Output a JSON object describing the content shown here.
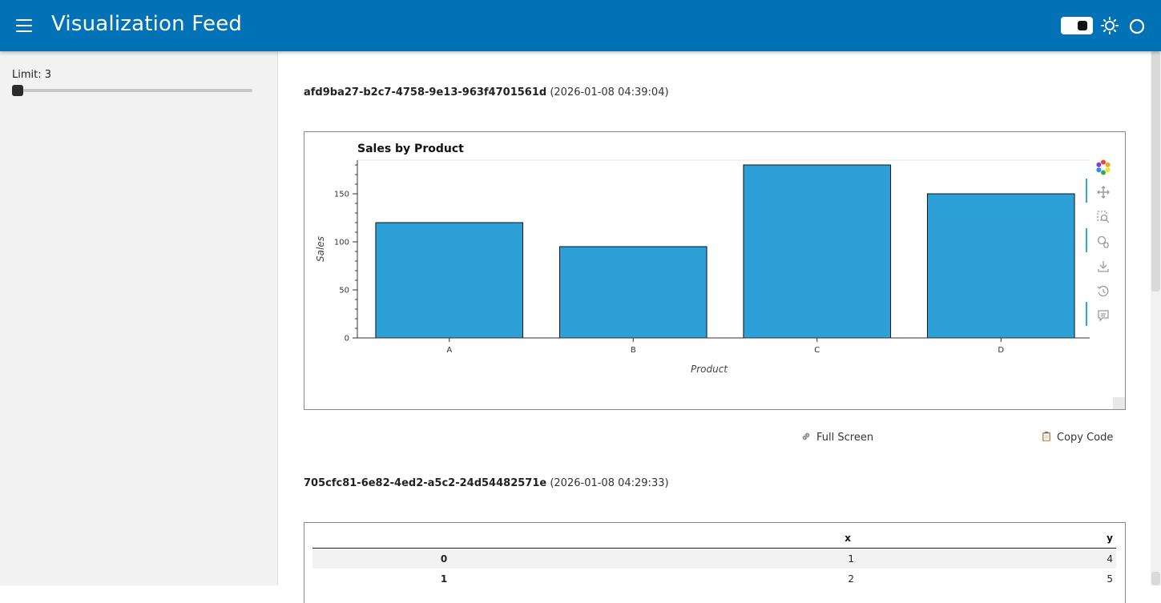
{
  "header": {
    "title": "Visualization Feed"
  },
  "sidebar": {
    "limit_label": "Limit: 3",
    "limit_value": 3
  },
  "entries": [
    {
      "id": "afd9ba27-b2c7-4758-9e13-963f4701561d",
      "timestamp": "(2026-01-08 04:39:04)"
    },
    {
      "id": "705cfc81-6e82-4ed2-a5c2-24d54482571e",
      "timestamp": "(2026-01-08 04:29:33)"
    }
  ],
  "chart_data": {
    "type": "bar",
    "title": "Sales by Product",
    "xlabel": "Product",
    "ylabel": "Sales",
    "categories": [
      "A",
      "B",
      "C",
      "D"
    ],
    "values": [
      120,
      95,
      180,
      150
    ],
    "ylim": [
      0,
      185
    ],
    "yticks": [
      0,
      50,
      100,
      150
    ],
    "bar_color": "#2ea0d8",
    "grid": false
  },
  "actions": {
    "full_screen": "Full Screen",
    "copy_code": "Copy Code"
  },
  "table": {
    "columns": [
      "",
      "x",
      "y"
    ],
    "rows": [
      {
        "index": "0",
        "x": "1",
        "y": "4"
      },
      {
        "index": "1",
        "x": "2",
        "y": "5"
      }
    ]
  },
  "icons": {
    "menu": "hamburger-icon",
    "toggle": "theme-toggle",
    "sun": "sun-icon",
    "circle": "circle-icon",
    "bokeh_logo": "bokeh-logo-icon",
    "pan": "pan-icon",
    "box_zoom": "box-zoom-icon",
    "wheel_zoom": "wheel-zoom-icon",
    "save": "save-icon",
    "reset": "reset-icon",
    "hover": "hover-icon",
    "link": "link-icon",
    "clipboard": "clipboard-icon"
  },
  "colors": {
    "header": "#0072b5",
    "sidebar": "#f2f2f2",
    "toolbar_active": "#26aae1"
  }
}
